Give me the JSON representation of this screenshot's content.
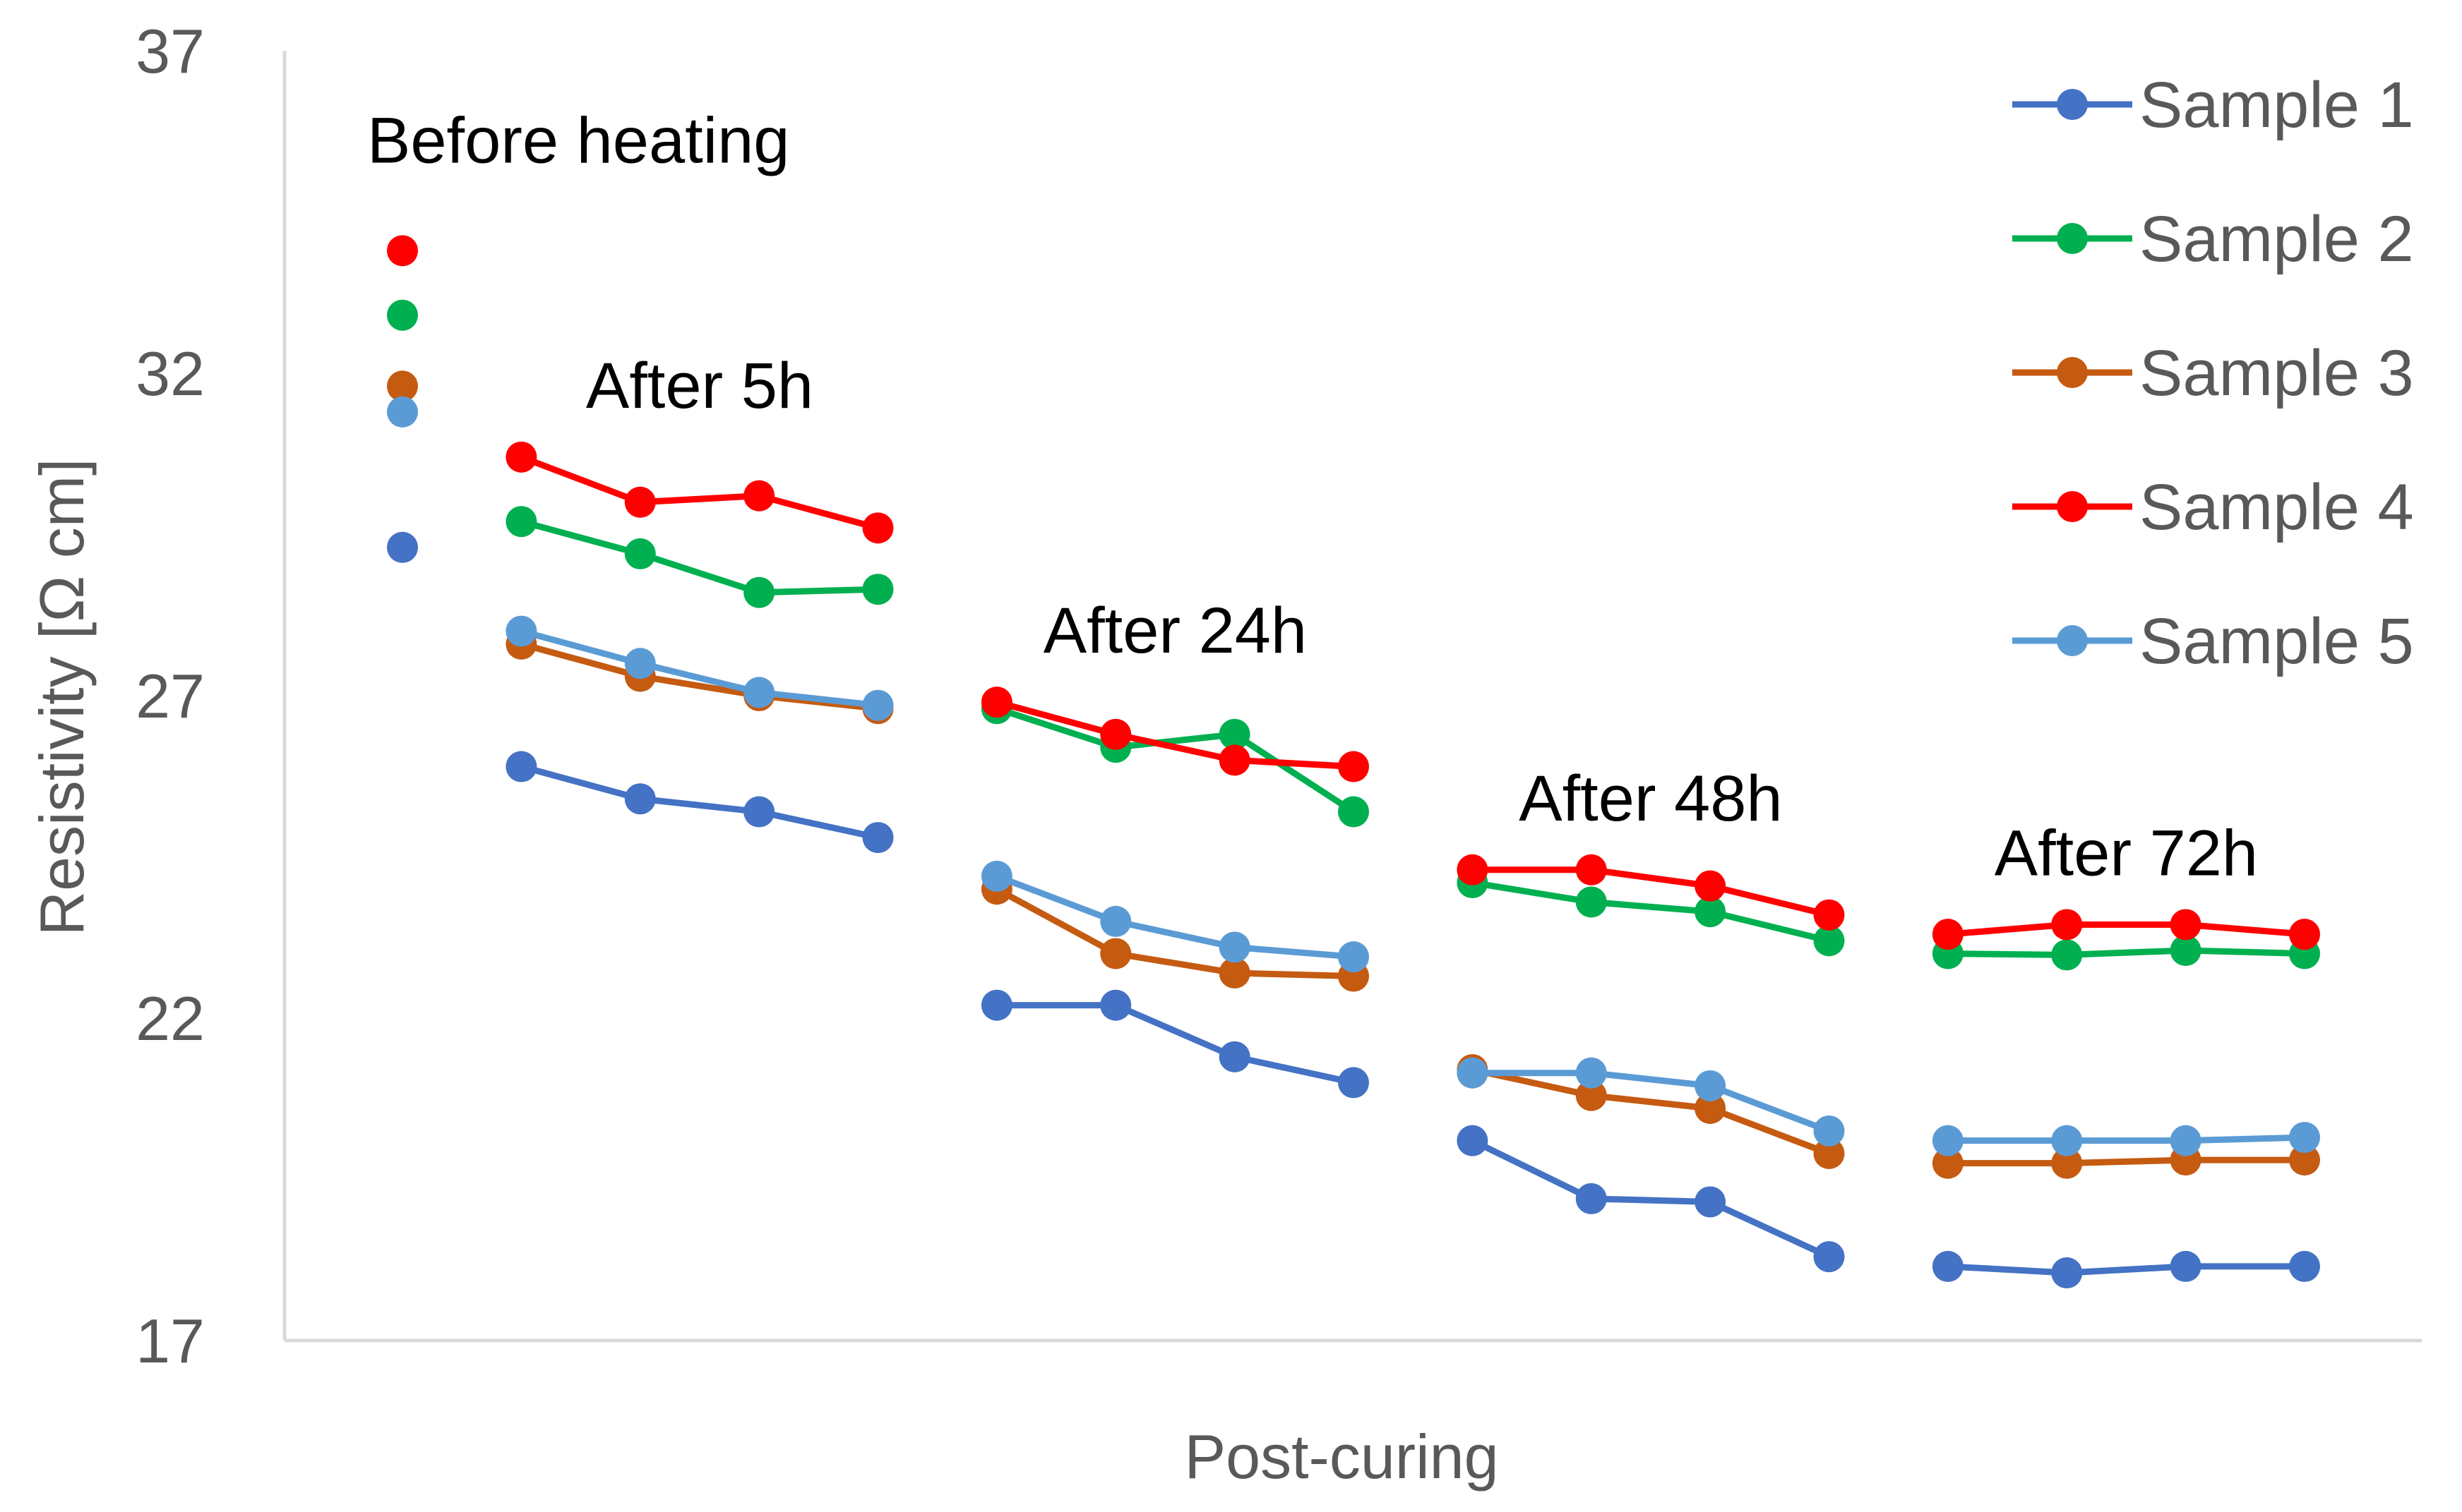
{
  "chart_data": {
    "type": "line",
    "title": "",
    "xlabel": "Post-curing",
    "ylabel": "Resistivity [Ω cm]",
    "ylim": [
      17,
      37
    ],
    "yticks": [
      17,
      22,
      27,
      32,
      37
    ],
    "x": [
      1,
      2,
      3,
      4,
      5,
      6,
      7,
      8,
      9,
      10,
      11,
      12,
      13,
      14,
      15,
      16,
      17
    ],
    "groups": [
      {
        "label": "Before heating",
        "x": [
          1
        ]
      },
      {
        "label": "After 5h",
        "x": [
          2,
          3,
          4,
          5
        ]
      },
      {
        "label": "After 24h",
        "x": [
          6,
          7,
          8,
          9
        ]
      },
      {
        "label": "After 48h",
        "x": [
          10,
          11,
          12,
          13
        ]
      },
      {
        "label": "After 72h",
        "x": [
          14,
          15,
          16,
          17
        ]
      }
    ],
    "series": [
      {
        "name": "Sample 1",
        "color": "#4472C4",
        "values": [
          29.3,
          25.9,
          25.4,
          25.2,
          24.8,
          22.2,
          22.2,
          21.4,
          21.0,
          20.1,
          19.2,
          19.15,
          18.3,
          18.15,
          18.05,
          18.15,
          18.15
        ]
      },
      {
        "name": "Sample 2",
        "color": "#00B050",
        "values": [
          32.9,
          29.7,
          29.2,
          28.6,
          28.65,
          26.8,
          26.2,
          26.4,
          25.2,
          24.1,
          23.8,
          23.65,
          23.2,
          23.0,
          22.98,
          23.05,
          23.0
        ]
      },
      {
        "name": "Sample 3",
        "color": "#C55A11",
        "values": [
          31.8,
          27.8,
          27.3,
          27.0,
          26.8,
          24.0,
          23.0,
          22.7,
          22.65,
          21.2,
          20.8,
          20.6,
          19.9,
          19.75,
          19.75,
          19.8,
          19.8
        ]
      },
      {
        "name": "Sample 4",
        "color": "#FF0000",
        "values": [
          33.9,
          30.7,
          30.0,
          30.1,
          29.6,
          26.9,
          26.4,
          26.0,
          25.9,
          24.3,
          24.3,
          24.05,
          23.6,
          23.3,
          23.45,
          23.45,
          23.3
        ]
      },
      {
        "name": "Sample 5",
        "color": "#5B9BD5",
        "values": [
          31.4,
          28.0,
          27.5,
          27.05,
          26.85,
          24.2,
          23.5,
          23.1,
          22.95,
          21.15,
          21.15,
          20.95,
          20.25,
          20.1,
          20.1,
          20.1,
          20.15
        ]
      }
    ]
  }
}
